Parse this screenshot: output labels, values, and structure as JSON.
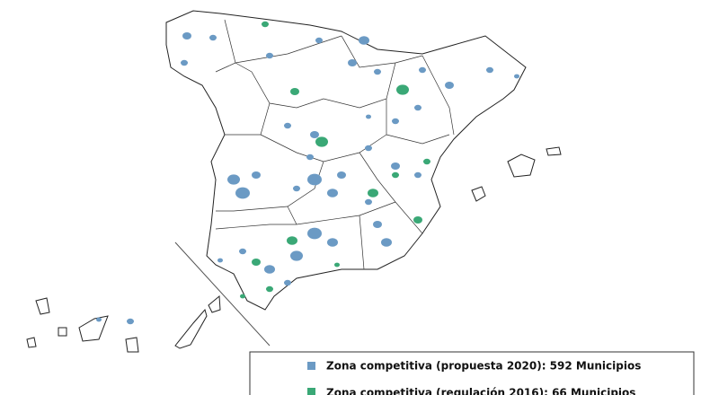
{
  "legend": {
    "items": [
      {
        "label": "Zona competitiva (propuesta 2020): 592 Municipios",
        "color": "#6b9ac4"
      },
      {
        "label": "Zona competitiva (regulación 2016): 66 Municipios",
        "color": "#3aa876"
      }
    ]
  }
}
